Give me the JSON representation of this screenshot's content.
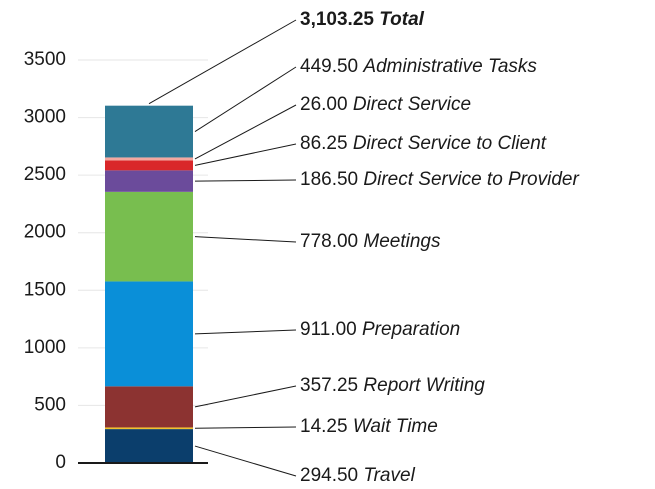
{
  "chart_data": {
    "type": "stacked_bar",
    "categories": [
      null
    ],
    "series": [
      {
        "name": "Travel",
        "color": "#0b3e6c",
        "values": [
          294.5
        ],
        "value_labels": [
          "294.50"
        ]
      },
      {
        "name": "Wait Time",
        "color": "#f2c12e",
        "values": [
          14.25
        ],
        "value_labels": [
          "14.25"
        ]
      },
      {
        "name": "Report Writing",
        "color": "#8c3331",
        "values": [
          357.25
        ],
        "value_labels": [
          "357.25"
        ]
      },
      {
        "name": "Preparation",
        "color": "#0a8fd8",
        "values": [
          911.0
        ],
        "value_labels": [
          "911.00"
        ]
      },
      {
        "name": "Meetings",
        "color": "#78be4f",
        "values": [
          778.0
        ],
        "value_labels": [
          "778.00"
        ]
      },
      {
        "name": "Direct Service to Provider",
        "color": "#6b4b9b",
        "values": [
          186.5
        ],
        "value_labels": [
          "186.50"
        ]
      },
      {
        "name": "Direct Service to Client",
        "color": "#d9272a",
        "values": [
          86.25
        ],
        "value_labels": [
          "86.25"
        ]
      },
      {
        "name": "Direct Service",
        "color": "#f3a8a0",
        "values": [
          26.0
        ],
        "value_labels": [
          "26.00"
        ]
      },
      {
        "name": "Administrative Tasks",
        "color": "#2e7995",
        "values": [
          449.5
        ],
        "value_labels": [
          "449.50"
        ]
      }
    ],
    "total": {
      "name": "Total",
      "value": 3103.25,
      "label": "3,103.25"
    },
    "ylim": [
      0,
      3500
    ],
    "yticks": [
      0,
      500,
      1000,
      1500,
      2000,
      2500,
      3000,
      3500
    ],
    "grid": true
  }
}
